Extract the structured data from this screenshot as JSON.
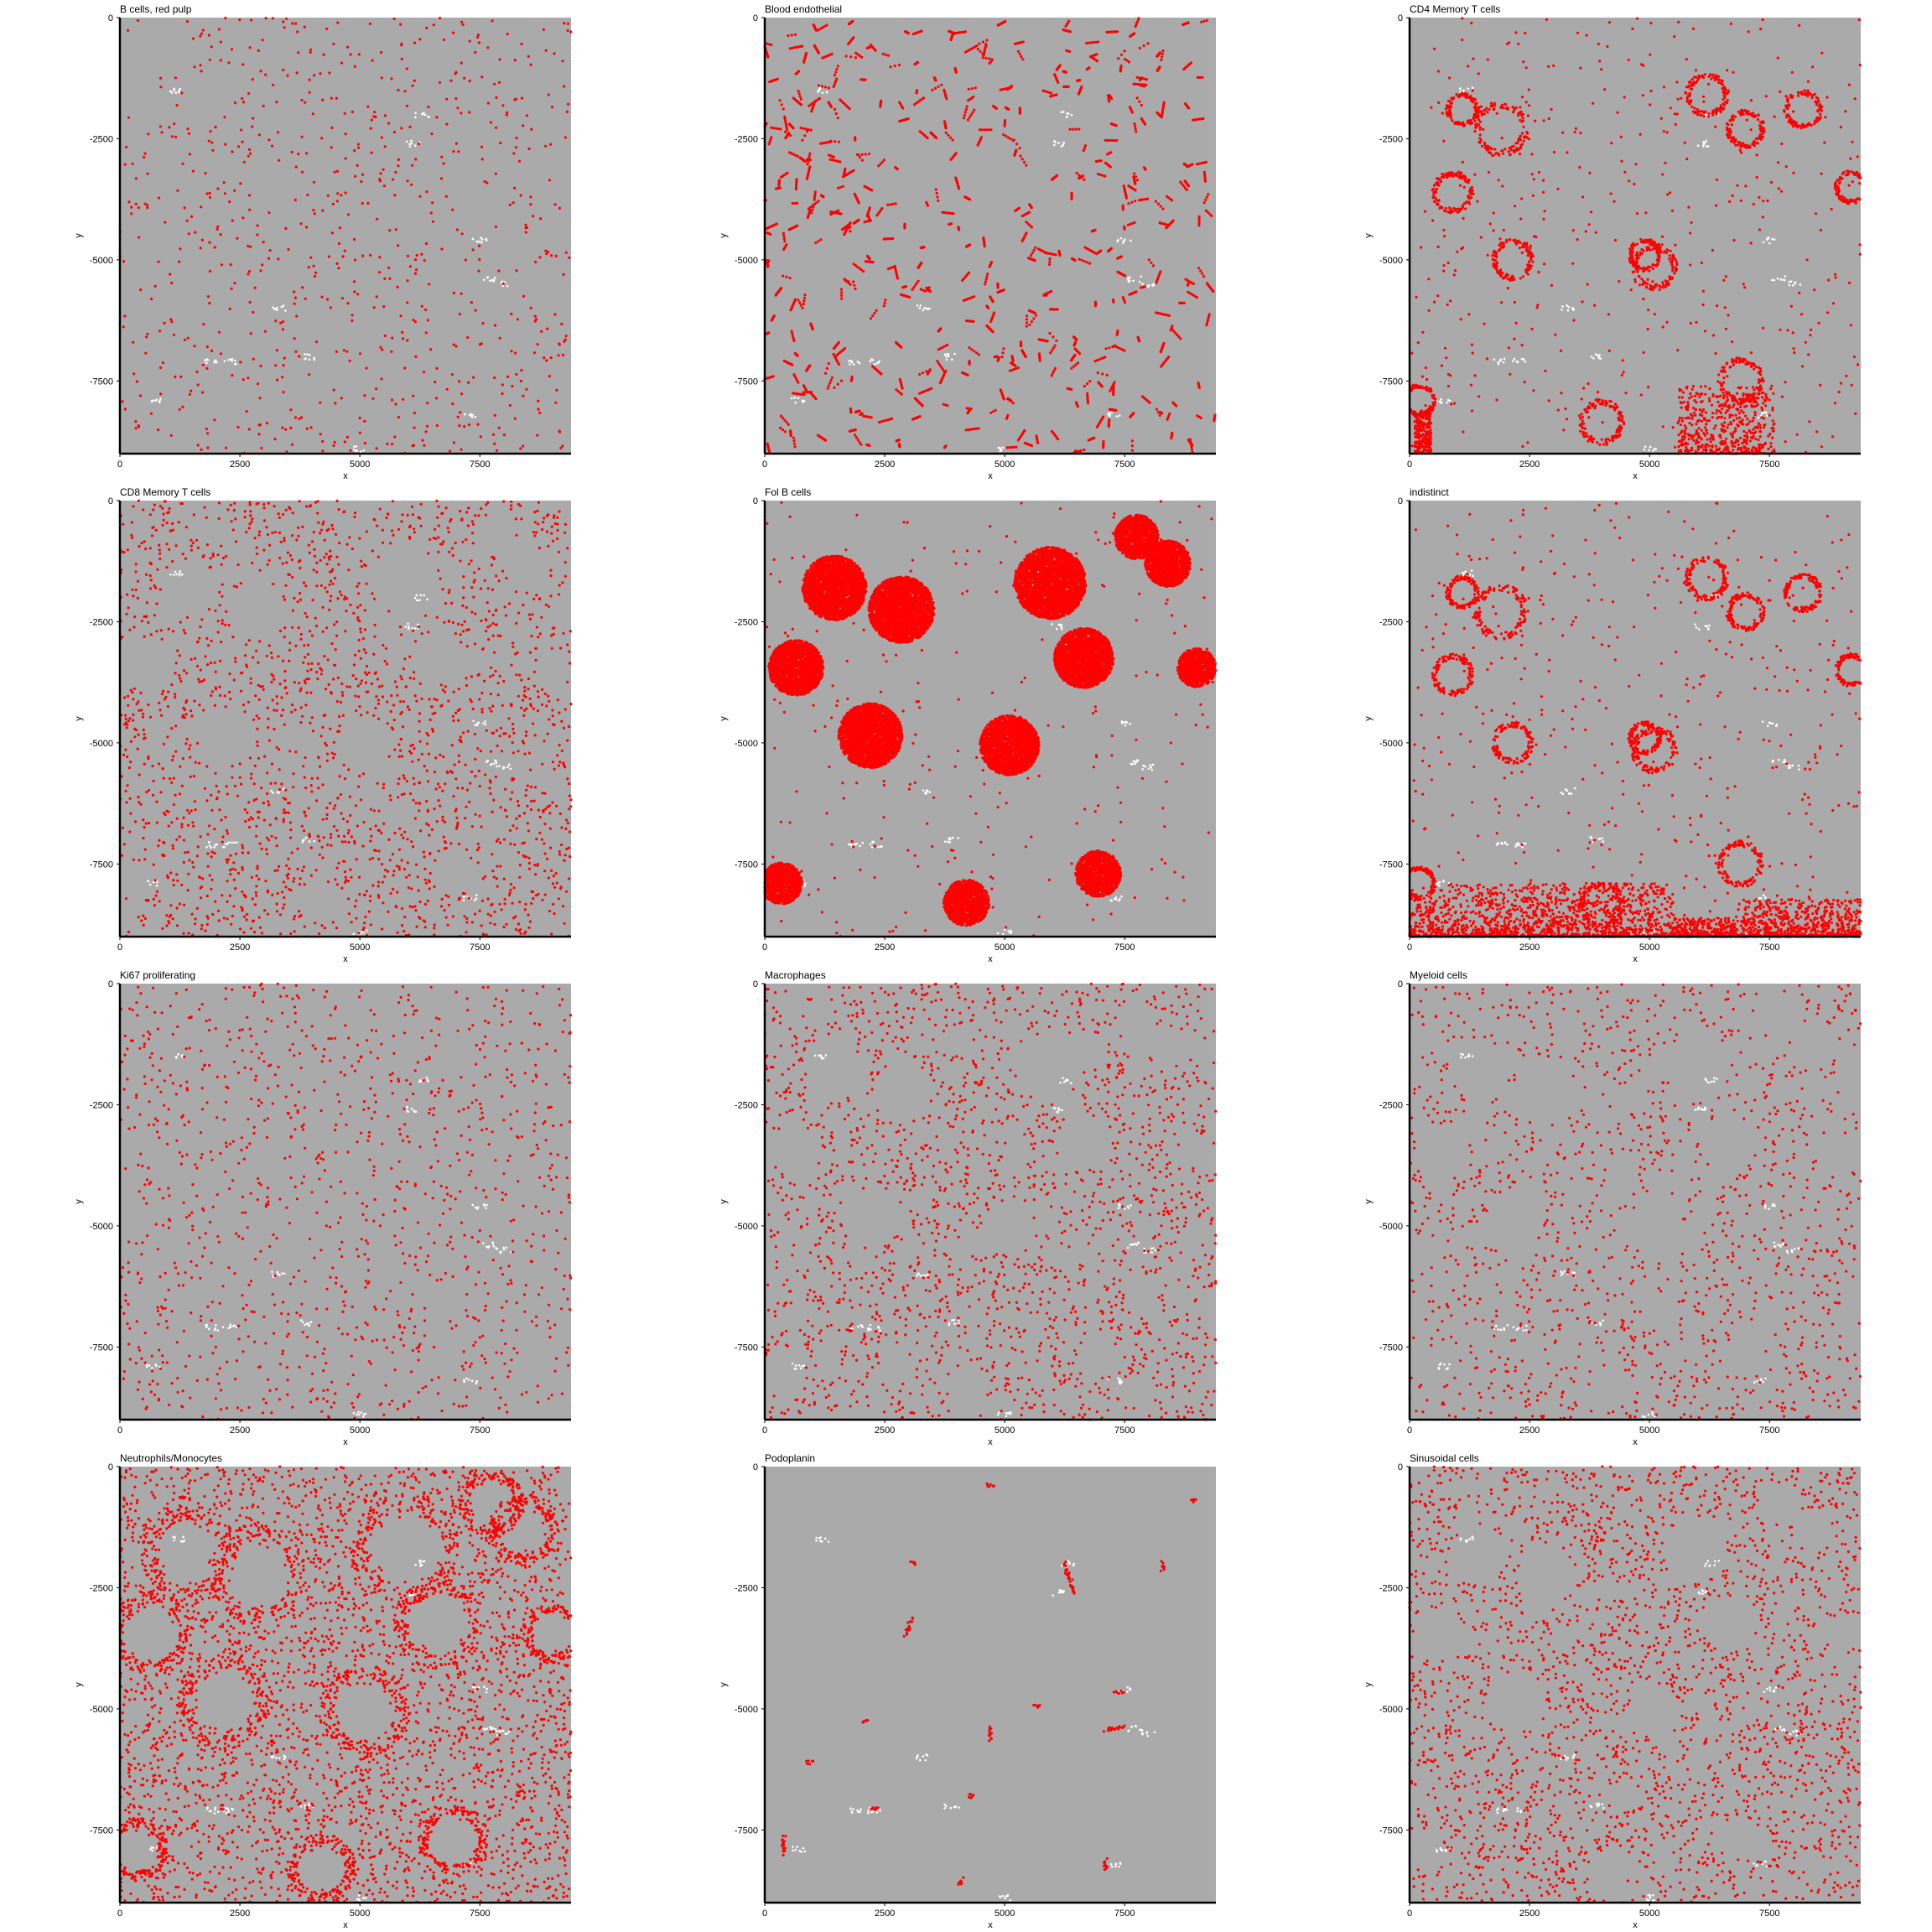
{
  "figure": {
    "background": "#ffffff",
    "panel_fill": "#aaaaaa",
    "highlight_color": "#ff0000",
    "void_color": "#ffffff"
  },
  "chart_data": [
    {
      "type": "scatter",
      "title": "B cells, red pulp",
      "xlabel": "x",
      "ylabel": "y",
      "xlim": [
        0,
        9400
      ],
      "ylim": [
        -9000,
        0
      ],
      "xticks": [
        "0",
        "2500",
        "5000",
        "7500"
      ],
      "yticks": [
        "0",
        "-2500",
        "-5000",
        "-7500"
      ],
      "pattern": "sparse-uniform",
      "density": 0.2
    },
    {
      "type": "scatter",
      "title": "Blood endothelial",
      "xlabel": "x",
      "ylabel": "y",
      "xlim": [
        0,
        9400
      ],
      "ylim": [
        -9000,
        0
      ],
      "xticks": [
        "0",
        "2500",
        "5000",
        "7500"
      ],
      "yticks": [
        "0",
        "-2500",
        "-5000",
        "-7500"
      ],
      "pattern": "vessels",
      "density": 0.18
    },
    {
      "type": "scatter",
      "title": "CD4 Memory T cells",
      "xlabel": "x",
      "ylabel": "y",
      "xlim": [
        0,
        9400
      ],
      "ylim": [
        -9000,
        0
      ],
      "xticks": [
        "0",
        "2500",
        "5000",
        "7500"
      ],
      "yticks": [
        "0",
        "-2500",
        "-5000",
        "-7500"
      ],
      "pattern": "rings",
      "density": 0.12
    },
    {
      "type": "scatter",
      "title": "CD8 Memory T cells",
      "xlabel": "x",
      "ylabel": "y",
      "xlim": [
        0,
        9400
      ],
      "ylim": [
        -9000,
        0
      ],
      "xticks": [
        "0",
        "2500",
        "5000",
        "7500"
      ],
      "yticks": [
        "0",
        "-2500",
        "-5000",
        "-7500"
      ],
      "pattern": "dense-avoid",
      "density": 0.55
    },
    {
      "type": "scatter",
      "title": "Fol B cells",
      "xlabel": "x",
      "ylabel": "y",
      "xlim": [
        0,
        9400
      ],
      "ylim": [
        -9000,
        0
      ],
      "xticks": [
        "0",
        "2500",
        "5000",
        "7500"
      ],
      "yticks": [
        "0",
        "-2500",
        "-5000",
        "-7500"
      ],
      "pattern": "follicles",
      "density": 0.05
    },
    {
      "type": "scatter",
      "title": "indistinct",
      "xlabel": "x",
      "ylabel": "y",
      "xlim": [
        0,
        9400
      ],
      "ylim": [
        -9000,
        0
      ],
      "xticks": [
        "0",
        "2500",
        "5000",
        "7500"
      ],
      "yticks": [
        "0",
        "-2500",
        "-5000",
        "-7500"
      ],
      "pattern": "rings-bottom",
      "density": 0.12
    },
    {
      "type": "scatter",
      "title": "Ki67 proliferating",
      "xlabel": "x",
      "ylabel": "y",
      "xlim": [
        0,
        9400
      ],
      "ylim": [
        -9000,
        0
      ],
      "xticks": [
        "0",
        "2500",
        "5000",
        "7500"
      ],
      "yticks": [
        "0",
        "-2500",
        "-5000",
        "-7500"
      ],
      "pattern": "sparse-uniform",
      "density": 0.3
    },
    {
      "type": "scatter",
      "title": "Macrophages",
      "xlabel": "x",
      "ylabel": "y",
      "xlim": [
        0,
        9400
      ],
      "ylim": [
        -9000,
        0
      ],
      "xticks": [
        "0",
        "2500",
        "5000",
        "7500"
      ],
      "yticks": [
        "0",
        "-2500",
        "-5000",
        "-7500"
      ],
      "pattern": "dense-avoid",
      "density": 0.5
    },
    {
      "type": "scatter",
      "title": "Myeloid cells",
      "xlabel": "x",
      "ylabel": "y",
      "xlim": [
        0,
        9400
      ],
      "ylim": [
        -9000,
        0
      ],
      "xticks": [
        "0",
        "2500",
        "5000",
        "7500"
      ],
      "yticks": [
        "0",
        "-2500",
        "-5000",
        "-7500"
      ],
      "pattern": "dense-avoid",
      "density": 0.35
    },
    {
      "type": "scatter",
      "title": "Neutrophils/Monocytes",
      "xlabel": "x",
      "ylabel": "y",
      "xlim": [
        0,
        9400
      ],
      "ylim": [
        -9000,
        0
      ],
      "xticks": [
        "0",
        "2500",
        "5000",
        "7500"
      ],
      "yticks": [
        "0",
        "-2500",
        "-5000",
        "-7500"
      ],
      "pattern": "very-dense-avoid",
      "density": 0.85
    },
    {
      "type": "scatter",
      "title": "Podoplanin",
      "xlabel": "x",
      "ylabel": "y",
      "xlim": [
        0,
        9400
      ],
      "ylim": [
        -9000,
        0
      ],
      "xticks": [
        "0",
        "2500",
        "5000",
        "7500"
      ],
      "yticks": [
        "0",
        "-2500",
        "-5000",
        "-7500"
      ],
      "pattern": "few-streaks",
      "density": 0.02
    },
    {
      "type": "scatter",
      "title": "Sinusoidal cells",
      "xlabel": "x",
      "ylabel": "y",
      "xlim": [
        0,
        9400
      ],
      "ylim": [
        -9000,
        0
      ],
      "xticks": [
        "0",
        "2500",
        "5000",
        "7500"
      ],
      "yticks": [
        "0",
        "-2500",
        "-5000",
        "-7500"
      ],
      "pattern": "network-avoid",
      "density": 0.65
    }
  ]
}
